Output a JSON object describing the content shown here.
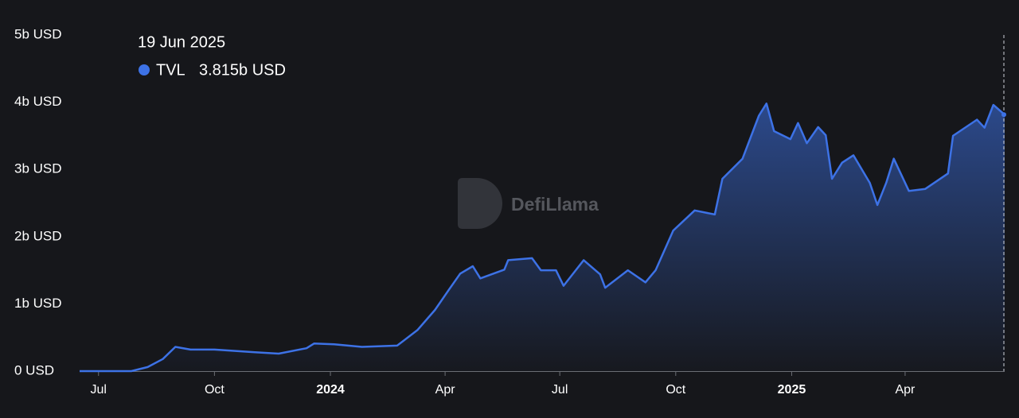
{
  "chart_data": {
    "type": "area",
    "series": [
      {
        "name": "TVL",
        "color": "#3d72e6",
        "values": [
          0,
          0,
          0.06,
          0.18,
          0.36,
          0.32,
          0.32,
          0.28,
          0.26,
          0.34,
          0.41,
          0.4,
          0.36,
          0.38,
          0.61,
          0.91,
          1.21,
          1.45,
          1.56,
          1.38,
          1.51,
          1.65,
          1.68,
          1.5,
          1.5,
          1.27,
          1.65,
          1.44,
          1.24,
          1.5,
          1.32,
          1.5,
          2.09,
          2.39,
          2.33,
          2.86,
          3.16,
          3.8,
          3.98,
          3.57,
          3.45,
          3.69,
          3.39,
          3.63,
          3.51,
          2.86,
          3.1,
          3.21,
          2.8,
          2.47,
          2.8,
          3.16,
          2.68,
          2.71,
          2.94,
          3.5,
          3.74,
          3.62,
          3.96,
          3.815
        ]
      }
    ],
    "x": [
      "2023-06-16",
      "2023-07-27",
      "2023-08-09",
      "2023-08-21",
      "2023-08-31",
      "2023-09-12",
      "2023-10-01",
      "2023-11-02",
      "2023-11-21",
      "2023-12-13",
      "2023-12-19",
      "2024-01-04",
      "2024-01-26",
      "2024-02-23",
      "2024-03-10",
      "2024-03-24",
      "2024-04-04",
      "2024-04-13",
      "2024-04-23",
      "2024-04-29",
      "2024-05-18",
      "2024-05-21",
      "2024-06-09",
      "2024-06-16",
      "2024-06-28",
      "2024-07-04",
      "2024-07-20",
      "2024-08-02",
      "2024-08-06",
      "2024-08-24",
      "2024-09-07",
      "2024-09-15",
      "2024-09-29",
      "2024-10-16",
      "2024-11-01",
      "2024-11-07",
      "2024-11-23",
      "2024-12-06",
      "2024-12-12",
      "2024-12-18",
      "2024-12-31",
      "2025-01-06",
      "2025-01-13",
      "2025-01-22",
      "2025-01-28",
      "2025-02-02",
      "2025-02-10",
      "2025-02-19",
      "2025-03-04",
      "2025-03-10",
      "2025-03-17",
      "2025-03-23",
      "2025-04-04",
      "2025-04-17",
      "2025-05-05",
      "2025-05-09",
      "2025-05-28",
      "2025-06-03",
      "2025-06-10",
      "2025-06-19"
    ],
    "xlim": [
      "2023-06-16",
      "2025-06-19"
    ],
    "xticks": [
      {
        "value": "2023-07-01",
        "label": "Jul"
      },
      {
        "value": "2023-10-01",
        "label": "Oct"
      },
      {
        "value": "2024-01-01",
        "label": "2024"
      },
      {
        "value": "2024-04-01",
        "label": "Apr"
      },
      {
        "value": "2024-07-01",
        "label": "Jul"
      },
      {
        "value": "2024-10-01",
        "label": "Oct"
      },
      {
        "value": "2025-01-01",
        "label": "2025"
      },
      {
        "value": "2025-04-01",
        "label": "Apr"
      }
    ],
    "ylim": [
      0,
      5
    ],
    "yticks": [
      {
        "value": 0,
        "label": "0 USD"
      },
      {
        "value": 1,
        "label": "1b USD"
      },
      {
        "value": 2,
        "label": "2b USD"
      },
      {
        "value": 3,
        "label": "3b USD"
      },
      {
        "value": 4,
        "label": "4b USD"
      },
      {
        "value": 5,
        "label": "5b USD"
      }
    ],
    "grid": false,
    "tooltip": {
      "date": "19 Jun 2025",
      "value": 3.815,
      "value_label": "3.815b USD"
    },
    "watermark": "DefiLlama"
  }
}
